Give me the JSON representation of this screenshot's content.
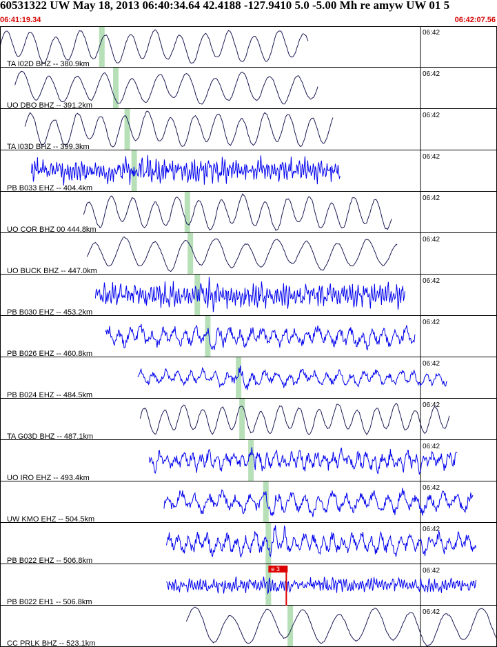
{
  "header": {
    "title": "60531322 UW May 18, 2013 06:40:34.64   42.4188 -127.9410  5.0 -5.00 Mh re amyw UW 01   5",
    "start_time": "06:41:19.34",
    "end_time": "06:42:07.56"
  },
  "minute_label": "06:42",
  "colors": {
    "broadband": "#1a1a55",
    "shortperiod": "#0000ee",
    "pick": "#b8e0b8",
    "time_red": "#d40000",
    "flag": "#dd0000"
  },
  "pick_flag": {
    "label": "e 3"
  },
  "traces": [
    {
      "label": "TA I02D BHZ -- 380.9km",
      "type": "bb",
      "start": 0.0,
      "end": 0.62,
      "pick": 0.205,
      "amp": 0.75,
      "period": 36,
      "noise": 0.05
    },
    {
      "label": "UO DBO BHZ -- 391.2km",
      "type": "bb",
      "start": 0.03,
      "end": 0.64,
      "pick": 0.233,
      "amp": 0.72,
      "period": 40,
      "noise": 0.05
    },
    {
      "label": "TA I03D BHZ -- 399.3km",
      "type": "bb",
      "start": 0.05,
      "end": 0.67,
      "pick": 0.256,
      "amp": 0.78,
      "period": 34,
      "noise": 0.06
    },
    {
      "label": "PB B033 EHZ -- 404.4km",
      "type": "sp",
      "start": 0.063,
      "end": 0.685,
      "pick": 0.27,
      "amp": 0.55,
      "period": 4,
      "noise": 1.0
    },
    {
      "label": "UO COR BHZ 00 444.8km",
      "type": "bb",
      "start": 0.168,
      "end": 0.79,
      "pick": 0.377,
      "amp": 0.75,
      "period": 32,
      "noise": 0.08
    },
    {
      "label": "UO BUCK BHZ -- 447.0km",
      "type": "bb",
      "start": 0.175,
      "end": 0.8,
      "pick": 0.383,
      "amp": 0.72,
      "period": 44,
      "noise": 0.05
    },
    {
      "label": "PB B030 EHZ -- 453.2km",
      "type": "sp",
      "start": 0.192,
      "end": 0.815,
      "pick": 0.397,
      "amp": 0.55,
      "period": 4,
      "noise": 1.0
    },
    {
      "label": "PB B026 EHZ -- 460.8km",
      "type": "sp",
      "start": 0.212,
      "end": 0.835,
      "pick": 0.418,
      "amp": 0.6,
      "period": 16,
      "noise": 0.6
    },
    {
      "label": "PB B024 EHZ -- 484.5km",
      "type": "sp",
      "start": 0.277,
      "end": 0.9,
      "pick": 0.48,
      "amp": 0.5,
      "period": 18,
      "noise": 0.5
    },
    {
      "label": "TA G03D BHZ -- 487.1km",
      "type": "bb",
      "start": 0.282,
      "end": 0.905,
      "pick": 0.487,
      "amp": 0.65,
      "period": 28,
      "noise": 0.1
    },
    {
      "label": "UO IRO EHZ -- 493.4km",
      "type": "sp",
      "start": 0.3,
      "end": 0.92,
      "pick": 0.505,
      "amp": 0.55,
      "period": 12,
      "noise": 0.8
    },
    {
      "label": "UW KMO EHZ -- 504.5km",
      "type": "sp",
      "start": 0.33,
      "end": 0.952,
      "pick": 0.535,
      "amp": 0.65,
      "period": 20,
      "noise": 0.5
    },
    {
      "label": "PB B022 EHZ -- 506.8km",
      "type": "sp",
      "start": 0.335,
      "end": 0.958,
      "pick": 0.54,
      "amp": 0.6,
      "period": 14,
      "noise": 0.7
    },
    {
      "label": "PB B022 EH1 -- 506.8km",
      "type": "sp",
      "start": 0.335,
      "end": 0.958,
      "pick": 0.54,
      "amp": 0.35,
      "period": 4,
      "noise": 1.0
    },
    {
      "label": "CC PRLK BHZ -- 523.1km",
      "type": "bb",
      "start": 0.375,
      "end": 1.0,
      "pick": 0.584,
      "amp": 0.85,
      "period": 52,
      "noise": 0.04
    }
  ]
}
